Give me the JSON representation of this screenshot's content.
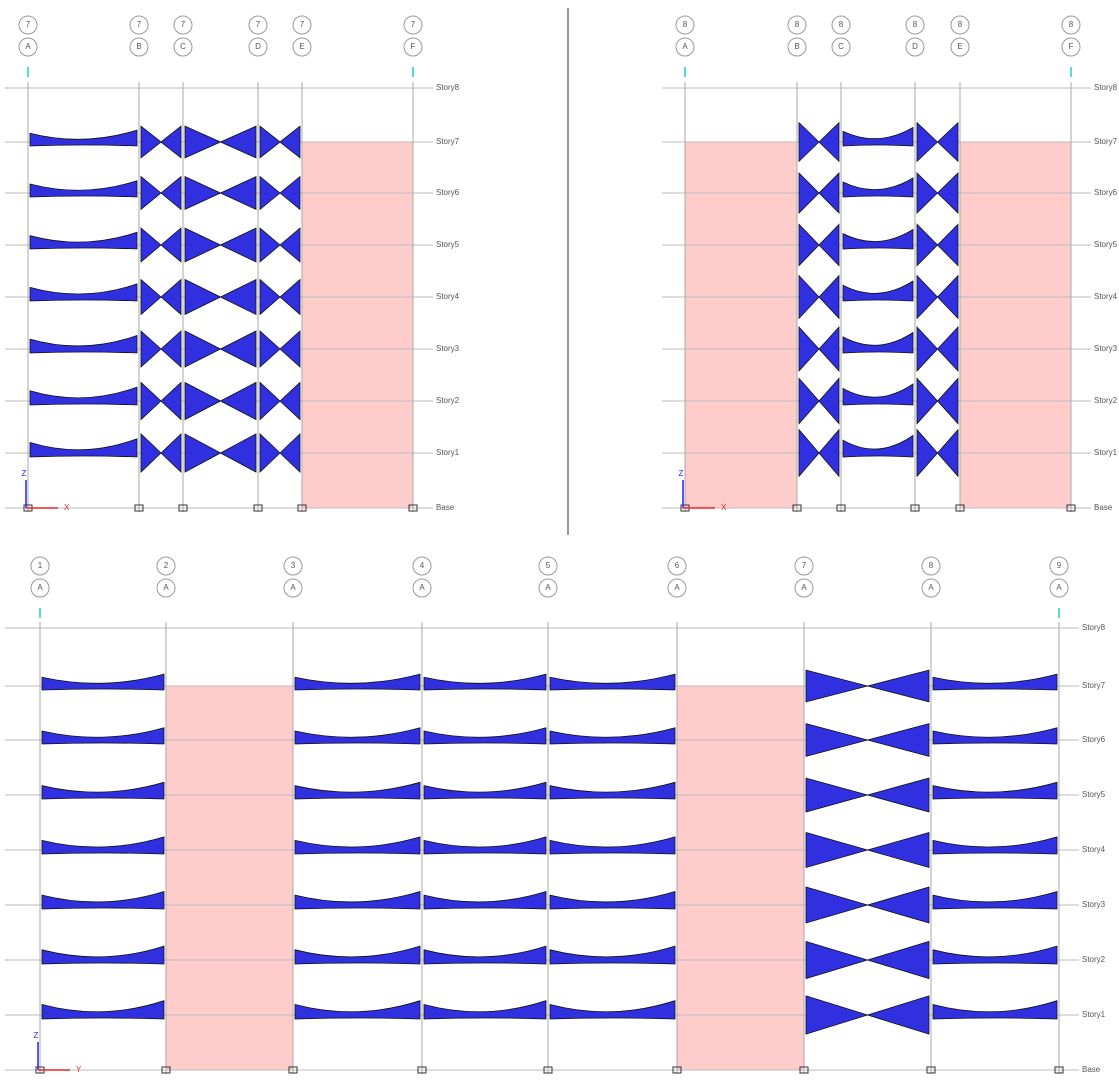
{
  "panels": [
    {
      "grid_lines": [
        {
          "number": "7",
          "letter": "A"
        },
        {
          "number": "7",
          "letter": "B"
        },
        {
          "number": "7",
          "letter": "C"
        },
        {
          "number": "7",
          "letter": "D"
        },
        {
          "number": "7",
          "letter": "E"
        },
        {
          "number": "7",
          "letter": "F"
        }
      ],
      "stories": [
        "Story8",
        "Story7",
        "Story6",
        "Story5",
        "Story4",
        "Story3",
        "Story2",
        "Story1",
        "Base"
      ],
      "axis": {
        "vertical": "Z",
        "horizontal": "X"
      }
    },
    {
      "grid_lines": [
        {
          "number": "8",
          "letter": "A"
        },
        {
          "number": "8",
          "letter": "B"
        },
        {
          "number": "8",
          "letter": "C"
        },
        {
          "number": "8",
          "letter": "D"
        },
        {
          "number": "8",
          "letter": "E"
        },
        {
          "number": "8",
          "letter": "F"
        }
      ],
      "stories": [
        "Story8",
        "Story7",
        "Story6",
        "Story5",
        "Story4",
        "Story3",
        "Story2",
        "Story1",
        "Base"
      ],
      "axis": {
        "vertical": "Z",
        "horizontal": "X"
      }
    },
    {
      "grid_lines": [
        {
          "number": "1",
          "letter": "A"
        },
        {
          "number": "2",
          "letter": "A"
        },
        {
          "number": "3",
          "letter": "A"
        },
        {
          "number": "4",
          "letter": "A"
        },
        {
          "number": "5",
          "letter": "A"
        },
        {
          "number": "6",
          "letter": "A"
        },
        {
          "number": "7",
          "letter": "A"
        },
        {
          "number": "8",
          "letter": "A"
        },
        {
          "number": "9",
          "letter": "A"
        }
      ],
      "stories": [
        "Story8",
        "Story7",
        "Story6",
        "Story5",
        "Story4",
        "Story3",
        "Story2",
        "Story1",
        "Base"
      ],
      "axis": {
        "vertical": "Z",
        "horizontal": "Y"
      }
    }
  ]
}
